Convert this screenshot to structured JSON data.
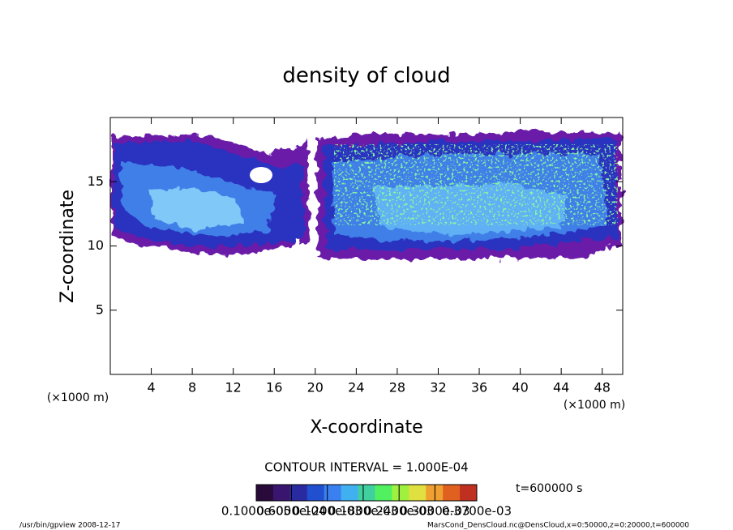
{
  "chart_data": {
    "type": "contour",
    "title": "density of cloud",
    "x_label": "X-coordinate",
    "y_label": "Z-coordinate",
    "x_unit": "(×1000 m)",
    "y_unit": "(×1000 m)",
    "xlim": [
      0,
      50
    ],
    "xticks": [
      4,
      8,
      12,
      16,
      20,
      24,
      28,
      32,
      36,
      40,
      44,
      48
    ],
    "ylim": [
      0,
      20
    ],
    "yticks": [
      5,
      10,
      15
    ],
    "contour_interval": "CONTOUR INTERVAL = 1.000E-04",
    "time_label": "t=600000 s",
    "colorbar": {
      "colors": [
        "#2a0a3a",
        "#3a1570",
        "#2a2aa0",
        "#2050d0",
        "#3a80f0",
        "#40b0f0",
        "#40d0a0",
        "#50f060",
        "#a0f040",
        "#e0e040",
        "#f0a030",
        "#e06020",
        "#c03020"
      ],
      "lim": [
        1e-06,
        0.00037
      ],
      "ticks": [
        {
          "value": 1e-06,
          "label": "0.1000e-05"
        },
        {
          "value": 6e-05,
          "label": "0.6000e-04"
        },
        {
          "value": 0.00012,
          "label": "0.1200e-03"
        },
        {
          "value": 0.00018,
          "label": "0.1800e-03"
        },
        {
          "value": 0.00024,
          "label": "0.2400e-03"
        },
        {
          "value": 0.0003,
          "label": "0.3000e-03"
        },
        {
          "value": 0.00037,
          "label": "0.3700e-03"
        }
      ]
    },
    "footer_left": "/usr/bin/gpview  2008-12-17",
    "footer_right": "MarsCond_DensCloud.nc@DensCloud,x=0:50000,z=0:20000,t=600000"
  }
}
